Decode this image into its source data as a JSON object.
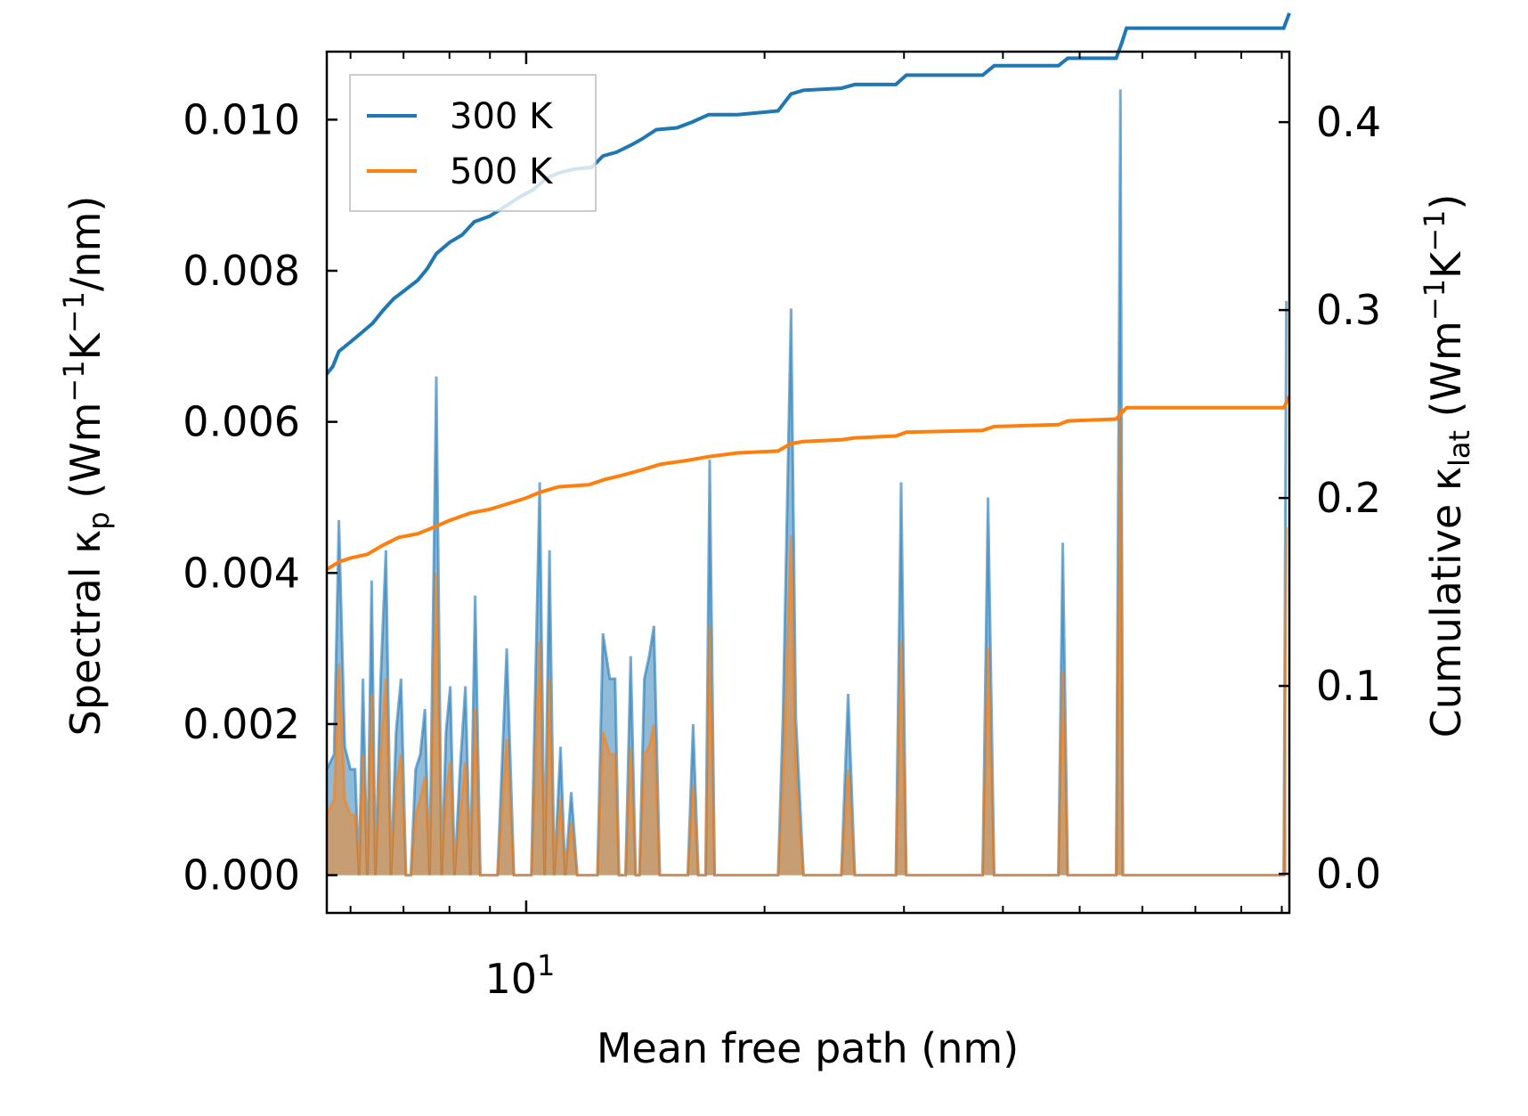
{
  "chart_data": {
    "type": "line",
    "xscale": "log",
    "xlim": [
      5.6,
      92
    ],
    "x_ticks": [
      {
        "value": 10,
        "base": "10",
        "exp": "1"
      }
    ],
    "xlabel": "Mean free path (nm)",
    "ylabel_left": {
      "main": "Spectral κ",
      "sub": "p",
      "units": " (Wm",
      "exp1": "−1",
      "k": "K",
      "exp2": "−1",
      "tail": "/nm)"
    },
    "ylabel_right": {
      "main": "Cumulative κ",
      "sub": "lat",
      "units": " (Wm",
      "exp1": "−1",
      "k": "K",
      "exp2": "−1",
      "tail": ")"
    },
    "ylim_left": [
      -0.0005,
      0.0109
    ],
    "ylim_right": [
      -0.0208,
      0.4375
    ],
    "yticks_left": [
      "0.000",
      "0.002",
      "0.004",
      "0.006",
      "0.008",
      "0.010"
    ],
    "yticks_right": [
      "0.0",
      "0.1",
      "0.2",
      "0.3",
      "0.4"
    ],
    "legend": {
      "position": "upper-left",
      "entries": [
        {
          "label": "300 K",
          "color": "#1f77b4"
        },
        {
          "label": "500 K",
          "color": "#ff7f0e"
        }
      ]
    },
    "series_spectral": [
      {
        "name": "300 K",
        "color": "#1f77b4",
        "points": [
          [
            5.6,
            0.0014
          ],
          [
            5.72,
            0.0016
          ],
          [
            5.8,
            0.0047
          ],
          [
            5.9,
            0.0017
          ],
          [
            6.0,
            0.0014
          ],
          [
            6.08,
            0.0014
          ],
          [
            6.15,
            0
          ],
          [
            6.22,
            0.0026
          ],
          [
            6.3,
            0
          ],
          [
            6.38,
            0.0039
          ],
          [
            6.45,
            0
          ],
          [
            6.55,
            0.0026
          ],
          [
            6.65,
            0.0043
          ],
          [
            6.75,
            0
          ],
          [
            6.85,
            0.0019
          ],
          [
            6.95,
            0.0026
          ],
          [
            7.05,
            0
          ],
          [
            7.15,
            0
          ],
          [
            7.25,
            0.0014
          ],
          [
            7.35,
            0.0016
          ],
          [
            7.45,
            0.0022
          ],
          [
            7.55,
            0
          ],
          [
            7.7,
            0.0066
          ],
          [
            7.82,
            0
          ],
          [
            7.92,
            0.0019
          ],
          [
            8.02,
            0.0025
          ],
          [
            8.12,
            0
          ],
          [
            8.25,
            0.0014
          ],
          [
            8.38,
            0.0025
          ],
          [
            8.5,
            0
          ],
          [
            8.62,
            0.0037
          ],
          [
            8.75,
            0
          ],
          [
            9.0,
            0
          ],
          [
            9.2,
            0
          ],
          [
            9.45,
            0.003
          ],
          [
            9.65,
            0
          ],
          [
            10.15,
            0
          ],
          [
            10.4,
            0.0052
          ],
          [
            10.55,
            0
          ],
          [
            10.7,
            0.0043
          ],
          [
            10.85,
            0
          ],
          [
            11.05,
            0.0017
          ],
          [
            11.2,
            0
          ],
          [
            11.4,
            0.0011
          ],
          [
            11.6,
            0
          ],
          [
            12.3,
            0
          ],
          [
            12.5,
            0.0032
          ],
          [
            12.75,
            0.0026
          ],
          [
            12.95,
            0.0026
          ],
          [
            13.1,
            0
          ],
          [
            13.35,
            0
          ],
          [
            13.55,
            0.0029
          ],
          [
            13.75,
            0
          ],
          [
            13.9,
            0
          ],
          [
            14.1,
            0.0026
          ],
          [
            14.3,
            0.0029
          ],
          [
            14.5,
            0.0033
          ],
          [
            14.75,
            0
          ],
          [
            16.0,
            0
          ],
          [
            16.25,
            0.002
          ],
          [
            16.5,
            0
          ],
          [
            16.85,
            0
          ],
          [
            17.05,
            0.0055
          ],
          [
            17.3,
            0
          ],
          [
            20.8,
            0
          ],
          [
            21.1,
            0.0021
          ],
          [
            21.6,
            0.0075
          ],
          [
            21.9,
            0.0021
          ],
          [
            22.4,
            0
          ],
          [
            25.0,
            0
          ],
          [
            25.5,
            0.0024
          ],
          [
            26.0,
            0
          ],
          [
            29.3,
            0
          ],
          [
            29.75,
            0.0052
          ],
          [
            30.2,
            0
          ],
          [
            37.7,
            0
          ],
          [
            38.3,
            0.005
          ],
          [
            39.0,
            0
          ],
          [
            47.0,
            0
          ],
          [
            47.6,
            0.0044
          ],
          [
            48.3,
            0
          ],
          [
            55.6,
            0
          ],
          [
            56.3,
            0.0104
          ],
          [
            56.7,
            0
          ],
          [
            57.3,
            0
          ],
          [
            90.5,
            0
          ],
          [
            91.2,
            0.0076
          ]
        ]
      },
      {
        "name": "500 K",
        "color": "#ff7f0e",
        "points": [
          [
            5.6,
            0.0008
          ],
          [
            5.72,
            0.001
          ],
          [
            5.8,
            0.0028
          ],
          [
            5.9,
            0.001
          ],
          [
            6.0,
            0.0008
          ],
          [
            6.08,
            0.0008
          ],
          [
            6.15,
            0
          ],
          [
            6.22,
            0.0016
          ],
          [
            6.3,
            0
          ],
          [
            6.38,
            0.0024
          ],
          [
            6.45,
            0
          ],
          [
            6.55,
            0.0016
          ],
          [
            6.65,
            0.0026
          ],
          [
            6.75,
            0
          ],
          [
            6.85,
            0.0012
          ],
          [
            6.95,
            0.0016
          ],
          [
            7.05,
            0
          ],
          [
            7.15,
            0
          ],
          [
            7.25,
            0.0008
          ],
          [
            7.35,
            0.001
          ],
          [
            7.45,
            0.0013
          ],
          [
            7.55,
            0
          ],
          [
            7.7,
            0.004
          ],
          [
            7.82,
            0
          ],
          [
            7.92,
            0.0011
          ],
          [
            8.02,
            0.0015
          ],
          [
            8.12,
            0
          ],
          [
            8.25,
            0.0008
          ],
          [
            8.38,
            0.0015
          ],
          [
            8.5,
            0
          ],
          [
            8.62,
            0.0022
          ],
          [
            8.75,
            0
          ],
          [
            9.0,
            0
          ],
          [
            9.2,
            0
          ],
          [
            9.45,
            0.0018
          ],
          [
            9.65,
            0
          ],
          [
            10.15,
            0
          ],
          [
            10.4,
            0.0031
          ],
          [
            10.55,
            0
          ],
          [
            10.7,
            0.0026
          ],
          [
            10.85,
            0
          ],
          [
            11.05,
            0.001
          ],
          [
            11.2,
            0
          ],
          [
            11.4,
            0.0007
          ],
          [
            11.6,
            0
          ],
          [
            12.3,
            0
          ],
          [
            12.5,
            0.0019
          ],
          [
            12.75,
            0.0016
          ],
          [
            12.95,
            0.0016
          ],
          [
            13.1,
            0
          ],
          [
            13.35,
            0
          ],
          [
            13.55,
            0.0017
          ],
          [
            13.75,
            0
          ],
          [
            13.9,
            0
          ],
          [
            14.1,
            0.0016
          ],
          [
            14.3,
            0.0017
          ],
          [
            14.5,
            0.002
          ],
          [
            14.75,
            0
          ],
          [
            16.0,
            0
          ],
          [
            16.25,
            0.0012
          ],
          [
            16.5,
            0
          ],
          [
            16.85,
            0
          ],
          [
            17.05,
            0.0033
          ],
          [
            17.3,
            0
          ],
          [
            20.8,
            0
          ],
          [
            21.1,
            0.0013
          ],
          [
            21.6,
            0.0045
          ],
          [
            21.9,
            0.0013
          ],
          [
            22.4,
            0
          ],
          [
            25.0,
            0
          ],
          [
            25.5,
            0.0014
          ],
          [
            26.0,
            0
          ],
          [
            29.3,
            0
          ],
          [
            29.75,
            0.0031
          ],
          [
            30.2,
            0
          ],
          [
            37.7,
            0
          ],
          [
            38.3,
            0.003
          ],
          [
            39.0,
            0
          ],
          [
            47.0,
            0
          ],
          [
            47.6,
            0.0027
          ],
          [
            48.3,
            0
          ],
          [
            55.6,
            0
          ],
          [
            56.3,
            0.0062
          ],
          [
            56.7,
            0
          ],
          [
            57.3,
            0
          ],
          [
            90.5,
            0
          ],
          [
            91.2,
            0.0046
          ]
        ]
      }
    ],
    "series_cumulative": [
      {
        "name": "300 K",
        "color": "#1f77b4",
        "points": [
          [
            5.6,
            0.266
          ],
          [
            5.7,
            0.27
          ],
          [
            5.8,
            0.278
          ],
          [
            6.0,
            0.283
          ],
          [
            6.2,
            0.288
          ],
          [
            6.4,
            0.293
          ],
          [
            6.6,
            0.3
          ],
          [
            6.8,
            0.306
          ],
          [
            7.0,
            0.31
          ],
          [
            7.3,
            0.316
          ],
          [
            7.5,
            0.322
          ],
          [
            7.7,
            0.33
          ],
          [
            8.0,
            0.336
          ],
          [
            8.3,
            0.34
          ],
          [
            8.6,
            0.347
          ],
          [
            9.0,
            0.35
          ],
          [
            9.4,
            0.355
          ],
          [
            9.8,
            0.36
          ],
          [
            10.2,
            0.364
          ],
          [
            10.6,
            0.37
          ],
          [
            11.0,
            0.373
          ],
          [
            11.5,
            0.375
          ],
          [
            12.1,
            0.376
          ],
          [
            12.5,
            0.382
          ],
          [
            13.0,
            0.384
          ],
          [
            13.6,
            0.388
          ],
          [
            14.0,
            0.391
          ],
          [
            14.6,
            0.396
          ],
          [
            15.5,
            0.397
          ],
          [
            16.2,
            0.4
          ],
          [
            17.0,
            0.404
          ],
          [
            18.5,
            0.404
          ],
          [
            20.8,
            0.406
          ],
          [
            21.6,
            0.415
          ],
          [
            22.4,
            0.417
          ],
          [
            25.0,
            0.418
          ],
          [
            26.0,
            0.42
          ],
          [
            29.3,
            0.42
          ],
          [
            30.2,
            0.425
          ],
          [
            37.7,
            0.425
          ],
          [
            39.0,
            0.43
          ],
          [
            47.0,
            0.43
          ],
          [
            48.3,
            0.434
          ],
          [
            55.6,
            0.434
          ],
          [
            56.5,
            0.442
          ],
          [
            57.3,
            0.45
          ],
          [
            90.5,
            0.45
          ],
          [
            92.0,
            0.458
          ]
        ]
      },
      {
        "name": "500 K",
        "color": "#ff7f0e",
        "points": [
          [
            5.6,
            0.162
          ],
          [
            5.8,
            0.166
          ],
          [
            6.0,
            0.168
          ],
          [
            6.3,
            0.17
          ],
          [
            6.6,
            0.175
          ],
          [
            6.9,
            0.179
          ],
          [
            7.3,
            0.181
          ],
          [
            7.7,
            0.185
          ],
          [
            8.0,
            0.188
          ],
          [
            8.5,
            0.192
          ],
          [
            9.0,
            0.194
          ],
          [
            9.5,
            0.197
          ],
          [
            10.0,
            0.2
          ],
          [
            10.4,
            0.203
          ],
          [
            11.0,
            0.206
          ],
          [
            12.0,
            0.207
          ],
          [
            12.6,
            0.21
          ],
          [
            13.2,
            0.212
          ],
          [
            14.0,
            0.215
          ],
          [
            14.8,
            0.218
          ],
          [
            16.0,
            0.22
          ],
          [
            17.0,
            0.222
          ],
          [
            18.5,
            0.224
          ],
          [
            20.8,
            0.225
          ],
          [
            21.6,
            0.229
          ],
          [
            22.4,
            0.23
          ],
          [
            25.0,
            0.231
          ],
          [
            26.0,
            0.232
          ],
          [
            29.3,
            0.233
          ],
          [
            30.2,
            0.235
          ],
          [
            37.7,
            0.236
          ],
          [
            39.0,
            0.238
          ],
          [
            47.0,
            0.239
          ],
          [
            48.3,
            0.241
          ],
          [
            55.6,
            0.242
          ],
          [
            57.3,
            0.248
          ],
          [
            90.5,
            0.248
          ],
          [
            92.0,
            0.254
          ]
        ]
      }
    ]
  }
}
